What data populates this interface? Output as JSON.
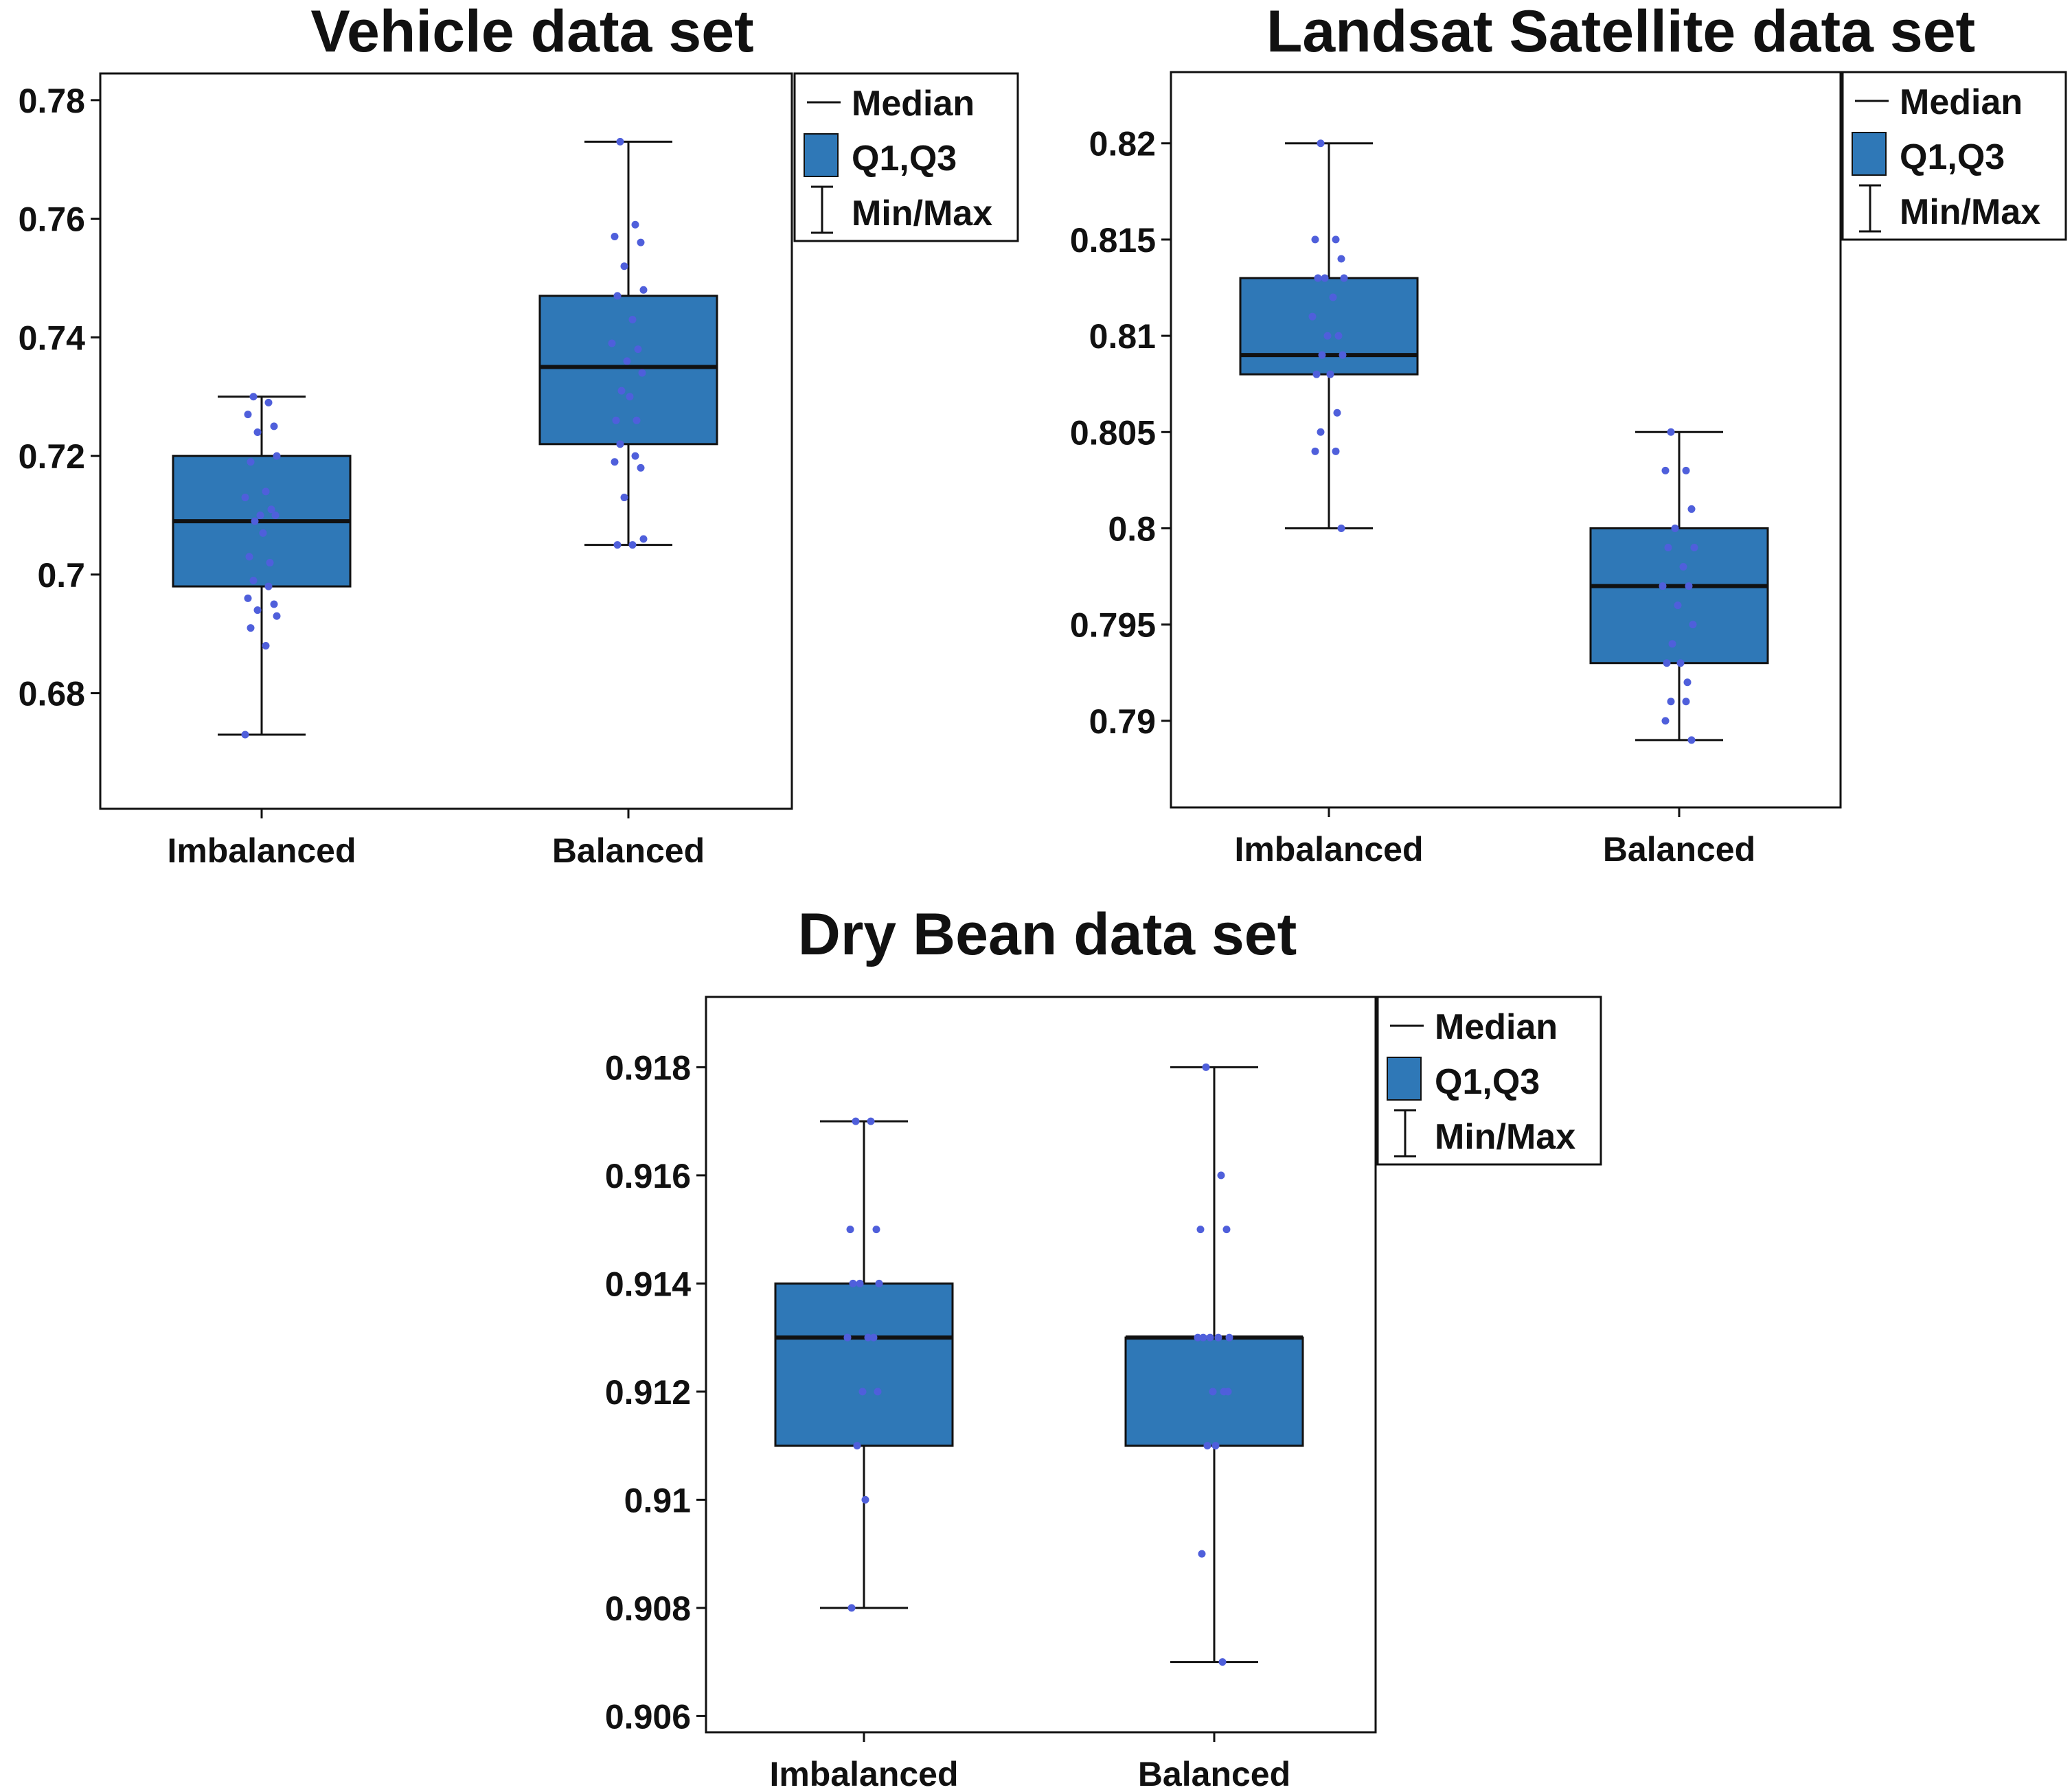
{
  "colors": {
    "box_fill": "#2f78b7",
    "point": "#4f5fdb",
    "line": "#111111"
  },
  "chart_data": [
    {
      "type": "boxplot",
      "title": "Vehicle data set",
      "xlabel": "",
      "ylabel": "",
      "categories": [
        "Imbalanced",
        "Balanced"
      ],
      "yticks": [
        0.68,
        0.7,
        0.72,
        0.74,
        0.76,
        0.78
      ],
      "ytick_labels": [
        "0.68",
        "0.7",
        "0.72",
        "0.74",
        "0.76",
        "0.78"
      ],
      "ylim": [
        0.6605,
        0.7845
      ],
      "legend": {
        "position": "top-right",
        "labels": [
          "Median",
          "Q1,Q3",
          "Min/Max"
        ]
      },
      "series": [
        {
          "name": "Imbalanced",
          "min": 0.673,
          "q1": 0.698,
          "median": 0.709,
          "q3": 0.72,
          "max": 0.73,
          "points": [
            0.73,
            0.729,
            0.727,
            0.725,
            0.724,
            0.72,
            0.719,
            0.714,
            0.713,
            0.711,
            0.71,
            0.71,
            0.709,
            0.707,
            0.703,
            0.702,
            0.699,
            0.698,
            0.696,
            0.695,
            0.694,
            0.693,
            0.691,
            0.688,
            0.673
          ]
        },
        {
          "name": "Balanced",
          "min": 0.705,
          "q1": 0.722,
          "median": 0.735,
          "q3": 0.747,
          "max": 0.773,
          "points": [
            0.773,
            0.759,
            0.757,
            0.756,
            0.752,
            0.748,
            0.747,
            0.743,
            0.739,
            0.738,
            0.736,
            0.734,
            0.731,
            0.73,
            0.726,
            0.726,
            0.722,
            0.72,
            0.719,
            0.718,
            0.713,
            0.706,
            0.705,
            0.705
          ]
        }
      ]
    },
    {
      "type": "boxplot",
      "title": "Landsat Satellite data set",
      "xlabel": "",
      "ylabel": "",
      "categories": [
        "Imbalanced",
        "Balanced"
      ],
      "yticks": [
        0.79,
        0.795,
        0.8,
        0.805,
        0.81,
        0.815,
        0.82
      ],
      "ytick_labels": [
        "0.79",
        "0.795",
        "0.8",
        "0.805",
        "0.81",
        "0.815",
        "0.82"
      ],
      "ylim": [
        0.7855,
        0.8237
      ],
      "legend": {
        "position": "top-right",
        "labels": [
          "Median",
          "Q1,Q3",
          "Min/Max"
        ]
      },
      "series": [
        {
          "name": "Imbalanced",
          "min": 0.8,
          "q1": 0.808,
          "median": 0.809,
          "q3": 0.813,
          "max": 0.82,
          "points": [
            0.82,
            0.815,
            0.815,
            0.814,
            0.813,
            0.813,
            0.813,
            0.812,
            0.811,
            0.81,
            0.81,
            0.809,
            0.809,
            0.808,
            0.808,
            0.806,
            0.805,
            0.804,
            0.804,
            0.8
          ]
        },
        {
          "name": "Balanced",
          "min": 0.789,
          "q1": 0.793,
          "median": 0.797,
          "q3": 0.8,
          "max": 0.805,
          "points": [
            0.805,
            0.803,
            0.803,
            0.801,
            0.8,
            0.799,
            0.799,
            0.798,
            0.797,
            0.797,
            0.796,
            0.795,
            0.794,
            0.793,
            0.793,
            0.792,
            0.791,
            0.791,
            0.79,
            0.789
          ]
        }
      ]
    },
    {
      "type": "boxplot",
      "title": "Dry Bean data set",
      "xlabel": "",
      "ylabel": "",
      "categories": [
        "Imbalanced",
        "Balanced"
      ],
      "yticks": [
        0.906,
        0.908,
        0.91,
        0.912,
        0.914,
        0.916,
        0.918
      ],
      "ytick_labels": [
        "0.906",
        "0.908",
        "0.91",
        "0.912",
        "0.914",
        "0.916",
        "0.918"
      ],
      "ylim": [
        0.9057,
        0.9193
      ],
      "legend": {
        "position": "top-right",
        "labels": [
          "Median",
          "Q1,Q3",
          "Min/Max"
        ]
      },
      "series": [
        {
          "name": "Imbalanced",
          "min": 0.908,
          "q1": 0.911,
          "median": 0.913,
          "q3": 0.914,
          "max": 0.917,
          "points": [
            0.917,
            0.917,
            0.915,
            0.915,
            0.914,
            0.914,
            0.914,
            0.913,
            0.913,
            0.913,
            0.912,
            0.912,
            0.911,
            0.91,
            0.908
          ]
        },
        {
          "name": "Balanced",
          "min": 0.907,
          "q1": 0.911,
          "median": 0.913,
          "q3": 0.913,
          "max": 0.918,
          "points": [
            0.918,
            0.916,
            0.915,
            0.915,
            0.913,
            0.913,
            0.913,
            0.913,
            0.913,
            0.912,
            0.912,
            0.912,
            0.911,
            0.911,
            0.909,
            0.907
          ]
        }
      ]
    }
  ]
}
